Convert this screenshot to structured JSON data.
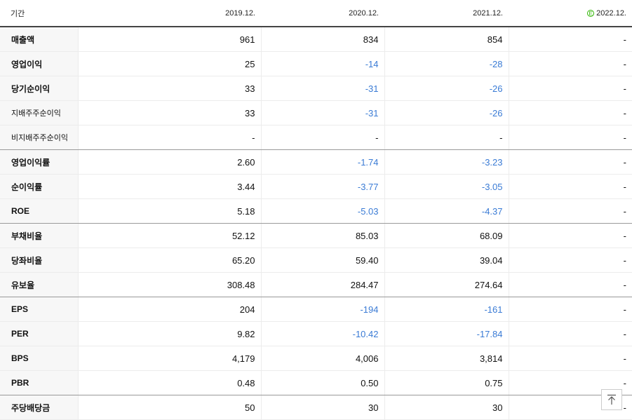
{
  "header": {
    "label": "기간",
    "periods": [
      "2019.12.",
      "2020.12.",
      "2021.12.",
      "2022.12."
    ],
    "estimate_mark": "E"
  },
  "rows": [
    {
      "label": "매출액",
      "values": [
        "961",
        "834",
        "854",
        "-"
      ]
    },
    {
      "label": "영업이익",
      "values": [
        "25",
        "-14",
        "-28",
        "-"
      ]
    },
    {
      "label": "당기순이익",
      "values": [
        "33",
        "-31",
        "-26",
        "-"
      ]
    },
    {
      "label": "지배주주순이익",
      "values": [
        "33",
        "-31",
        "-26",
        "-"
      ]
    },
    {
      "label": "비지배주주순이익",
      "values": [
        "-",
        "-",
        "-",
        "-"
      ]
    },
    {
      "label": "영업이익률",
      "values": [
        "2.60",
        "-1.74",
        "-3.23",
        "-"
      ]
    },
    {
      "label": "순이익률",
      "values": [
        "3.44",
        "-3.77",
        "-3.05",
        "-"
      ]
    },
    {
      "label": "ROE",
      "values": [
        "5.18",
        "-5.03",
        "-4.37",
        "-"
      ]
    },
    {
      "label": "부채비율",
      "values": [
        "52.12",
        "85.03",
        "68.09",
        "-"
      ]
    },
    {
      "label": "당좌비율",
      "values": [
        "65.20",
        "59.40",
        "39.04",
        "-"
      ]
    },
    {
      "label": "유보율",
      "values": [
        "308.48",
        "284.47",
        "274.64",
        "-"
      ]
    },
    {
      "label": "EPS",
      "values": [
        "204",
        "-194",
        "-161",
        "-"
      ]
    },
    {
      "label": "PER",
      "values": [
        "9.82",
        "-10.42",
        "-17.84",
        "-"
      ]
    },
    {
      "label": "BPS",
      "values": [
        "4,179",
        "4,006",
        "3,814",
        "-"
      ]
    },
    {
      "label": "PBR",
      "values": [
        "0.48",
        "0.50",
        "0.75",
        "-"
      ]
    },
    {
      "label": "주당배당금",
      "values": [
        "50",
        "30",
        "30",
        "-"
      ]
    }
  ],
  "colors": {
    "negative": "#3a7bd5",
    "estimate_badge": "#2db400"
  },
  "icons": {
    "scroll_top": "arrow-up-to-top-icon"
  }
}
